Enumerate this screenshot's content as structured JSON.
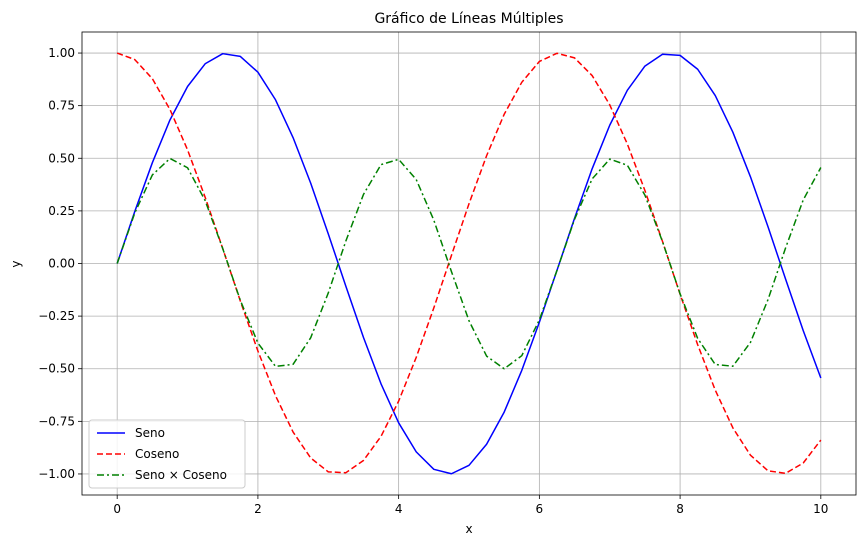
{
  "chart_data": {
    "type": "line",
    "title": "Gráfico de Líneas Múltiples",
    "xlabel": "x",
    "ylabel": "y",
    "xlim": [
      -0.5,
      10.5
    ],
    "ylim": [
      -1.1,
      1.1
    ],
    "grid": true,
    "legend_position": "lower-left",
    "x_ticks": [
      0,
      2,
      4,
      6,
      8,
      10
    ],
    "x_tick_labels": [
      "0",
      "2",
      "4",
      "6",
      "8",
      "10"
    ],
    "y_ticks": [
      -1.0,
      -0.75,
      -0.5,
      -0.25,
      0.0,
      0.25,
      0.5,
      0.75,
      1.0
    ],
    "y_tick_labels": [
      "−1.00",
      "−0.75",
      "−0.50",
      "−0.25",
      "0.00",
      "0.25",
      "0.50",
      "0.75",
      "1.00"
    ],
    "x": [
      0,
      0.25,
      0.5,
      0.75,
      1,
      1.25,
      1.5,
      1.75,
      2,
      2.25,
      2.5,
      2.75,
      3,
      3.25,
      3.5,
      3.75,
      4,
      4.25,
      4.5,
      4.75,
      5,
      5.25,
      5.5,
      5.75,
      6,
      6.25,
      6.5,
      6.75,
      7,
      7.25,
      7.5,
      7.75,
      8,
      8.25,
      8.5,
      8.75,
      9,
      9.25,
      9.5,
      9.75,
      10
    ],
    "series": [
      {
        "name": "Seno",
        "color": "#0000ff",
        "style": "solid",
        "values": [
          0.0,
          0.247,
          0.479,
          0.682,
          0.841,
          0.949,
          0.997,
          0.984,
          0.909,
          0.778,
          0.598,
          0.382,
          0.141,
          -0.108,
          -0.351,
          -0.572,
          -0.757,
          -0.895,
          -0.978,
          -0.999,
          -0.959,
          -0.859,
          -0.706,
          -0.508,
          -0.279,
          -0.033,
          0.215,
          0.45,
          0.657,
          0.823,
          0.938,
          0.994,
          0.989,
          0.923,
          0.798,
          0.624,
          0.412,
          0.174,
          -0.075,
          -0.319,
          -0.544
        ]
      },
      {
        "name": "Coseno",
        "color": "#ff0000",
        "style": "dashed",
        "values": [
          1.0,
          0.969,
          0.878,
          0.732,
          0.54,
          0.315,
          0.071,
          -0.178,
          -0.416,
          -0.628,
          -0.801,
          -0.924,
          -0.99,
          -0.994,
          -0.936,
          -0.821,
          -0.654,
          -0.446,
          -0.211,
          0.038,
          0.284,
          0.512,
          0.709,
          0.861,
          0.96,
          0.999,
          0.977,
          0.893,
          0.754,
          0.568,
          0.347,
          0.105,
          -0.146,
          -0.386,
          -0.602,
          -0.781,
          -0.911,
          -0.985,
          -0.997,
          -0.948,
          -0.839
        ]
      },
      {
        "name": "Seno × Coseno",
        "color": "#008000",
        "style": "dashdot",
        "values": [
          0.0,
          0.24,
          0.421,
          0.499,
          0.455,
          0.299,
          0.071,
          -0.175,
          -0.378,
          -0.489,
          -0.479,
          -0.353,
          -0.14,
          0.107,
          0.328,
          0.47,
          0.495,
          0.399,
          0.206,
          -0.038,
          -0.272,
          -0.44,
          -0.5,
          -0.438,
          -0.268,
          -0.033,
          0.21,
          0.402,
          0.496,
          0.467,
          0.325,
          0.104,
          -0.144,
          -0.356,
          -0.48,
          -0.488,
          -0.375,
          -0.171,
          0.075,
          0.302,
          0.456
        ]
      }
    ]
  }
}
